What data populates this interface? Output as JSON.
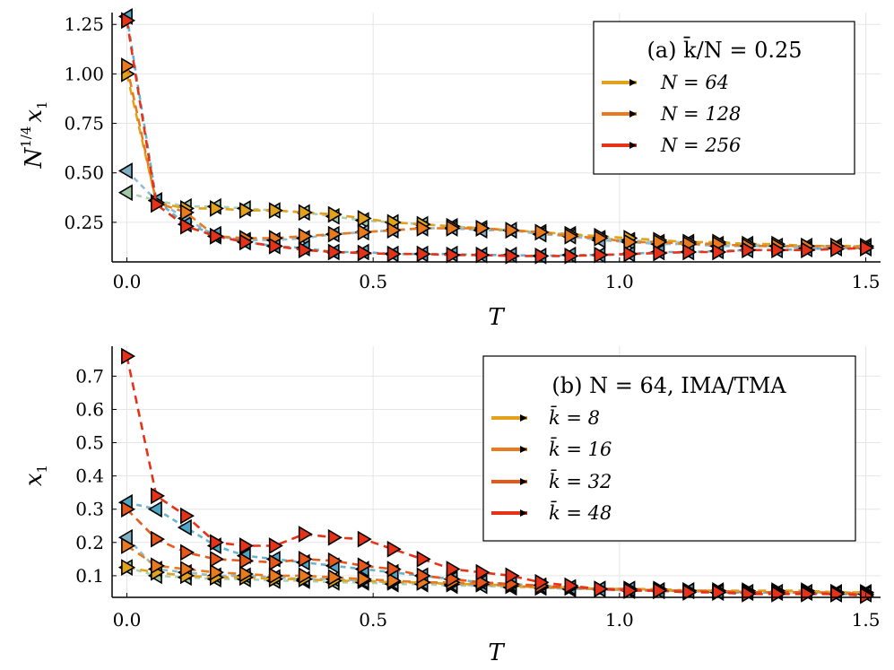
{
  "chart_data": [
    {
      "type": "line",
      "panel": "a",
      "legend_title": "(a) k̄/N = 0.25",
      "xlabel": "T",
      "ylabel": "N^{1/4} x_1",
      "ylabel_main": "N",
      "ylabel_exp": "1/4",
      "ylabel_var": "x",
      "ylabel_sub": "1",
      "xlim": [
        -0.03,
        1.53
      ],
      "ylim": [
        0.05,
        1.31
      ],
      "xticks": [
        0.0,
        0.5,
        1.0,
        1.5
      ],
      "xtick_labels": [
        "0.0",
        "0.5",
        "1.0",
        "1.5"
      ],
      "yticks": [
        0.25,
        0.5,
        0.75,
        1.0,
        1.25
      ],
      "ytick_labels": [
        "0.25",
        "0.50",
        "0.75",
        "1.00",
        "1.25"
      ],
      "legend_position": "top-right",
      "series": [
        {
          "name": "N = 64",
          "color": "#e2a21b",
          "x": [
            0.0,
            0.06,
            0.12,
            0.18,
            0.24,
            0.3,
            0.36,
            0.42,
            0.48,
            0.54,
            0.6,
            0.66,
            0.72,
            0.78,
            0.84,
            0.9,
            0.96,
            1.02,
            1.08,
            1.14,
            1.2,
            1.26,
            1.32,
            1.38,
            1.44,
            1.5
          ],
          "values": [
            1.0,
            0.35,
            0.32,
            0.32,
            0.31,
            0.31,
            0.3,
            0.29,
            0.27,
            0.25,
            0.24,
            0.23,
            0.22,
            0.21,
            0.2,
            0.19,
            0.18,
            0.17,
            0.16,
            0.15,
            0.15,
            0.14,
            0.14,
            0.13,
            0.13,
            0.13
          ]
        },
        {
          "name": "N = 128",
          "color": "#ea7a1e",
          "x": [
            0.0,
            0.06,
            0.12,
            0.18,
            0.24,
            0.3,
            0.36,
            0.42,
            0.48,
            0.54,
            0.6,
            0.66,
            0.72,
            0.78,
            0.84,
            0.9,
            0.96,
            1.02,
            1.08,
            1.14,
            1.2,
            1.26,
            1.32,
            1.38,
            1.44,
            1.5
          ],
          "values": [
            1.04,
            0.35,
            0.3,
            0.18,
            0.17,
            0.17,
            0.18,
            0.19,
            0.2,
            0.21,
            0.22,
            0.22,
            0.22,
            0.21,
            0.2,
            0.18,
            0.17,
            0.15,
            0.15,
            0.14,
            0.14,
            0.13,
            0.13,
            0.13,
            0.13,
            0.12
          ]
        },
        {
          "name": "N = 256",
          "color": "#e53218",
          "x": [
            0.0,
            0.06,
            0.12,
            0.18,
            0.24,
            0.3,
            0.36,
            0.42,
            0.48,
            0.54,
            0.6,
            0.66,
            0.72,
            0.78,
            0.84,
            0.9,
            0.96,
            1.02,
            1.08,
            1.14,
            1.2,
            1.26,
            1.32,
            1.38,
            1.44,
            1.5
          ],
          "values": [
            1.27,
            0.34,
            0.23,
            0.18,
            0.15,
            0.13,
            0.11,
            0.1,
            0.095,
            0.09,
            0.09,
            0.085,
            0.085,
            0.08,
            0.08,
            0.08,
            0.085,
            0.09,
            0.095,
            0.1,
            0.1,
            0.11,
            0.11,
            0.11,
            0.115,
            0.12
          ]
        },
        {
          "name": "",
          "color": "#9ec8a6",
          "x": [
            0.0,
            0.06,
            0.12,
            0.18,
            0.24,
            0.3,
            0.36,
            0.42,
            0.48,
            0.54,
            0.6,
            0.66,
            0.72,
            0.78,
            0.84,
            0.9,
            0.96,
            1.02,
            1.08,
            1.14,
            1.2,
            1.26,
            1.32,
            1.38,
            1.44,
            1.5
          ],
          "values": [
            0.4,
            0.36,
            0.33,
            0.33,
            0.32,
            0.31,
            0.3,
            0.28,
            0.26,
            0.25,
            0.24,
            0.23,
            0.22,
            0.21,
            0.2,
            0.19,
            0.17,
            0.16,
            0.15,
            0.15,
            0.14,
            0.14,
            0.13,
            0.13,
            0.13,
            0.13
          ]
        },
        {
          "name": "",
          "color": "#7fb0c6",
          "x": [
            0.0,
            0.06,
            0.12,
            0.18,
            0.24,
            0.3,
            0.36,
            0.42,
            0.48,
            0.54,
            0.6,
            0.66,
            0.72,
            0.78,
            0.84,
            0.9,
            0.96,
            1.02,
            1.08,
            1.14,
            1.2,
            1.26,
            1.32,
            1.38,
            1.44,
            1.5
          ],
          "values": [
            0.51,
            0.36,
            0.27,
            0.18,
            0.16,
            0.16,
            0.17,
            0.19,
            0.2,
            0.21,
            0.22,
            0.22,
            0.21,
            0.21,
            0.19,
            0.18,
            0.16,
            0.15,
            0.14,
            0.14,
            0.13,
            0.13,
            0.13,
            0.12,
            0.12,
            0.12
          ]
        },
        {
          "name": "",
          "color": "#4da6c4",
          "x": [
            0.0,
            0.06,
            0.12,
            0.18,
            0.24,
            0.3,
            0.36,
            0.42,
            0.48,
            0.54,
            0.6,
            0.66,
            0.72,
            0.78,
            0.84,
            0.9,
            0.96,
            1.02,
            1.08,
            1.14,
            1.2,
            1.26,
            1.32,
            1.38,
            1.44,
            1.5
          ],
          "values": [
            1.29,
            0.36,
            0.24,
            0.19,
            0.15,
            0.13,
            0.12,
            0.1,
            0.1,
            0.09,
            0.09,
            0.09,
            0.085,
            0.085,
            0.08,
            0.085,
            0.085,
            0.09,
            0.1,
            0.1,
            0.105,
            0.11,
            0.11,
            0.115,
            0.12,
            0.12
          ]
        }
      ]
    },
    {
      "type": "line",
      "panel": "b",
      "legend_title": "(b) N = 64, IMA/TMA",
      "xlabel": "T",
      "ylabel": "x_1",
      "ylabel_var": "x",
      "ylabel_sub": "1",
      "xlim": [
        -0.03,
        1.53
      ],
      "ylim": [
        0.035,
        0.79
      ],
      "xticks": [
        0.0,
        0.5,
        1.0,
        1.5
      ],
      "xtick_labels": [
        "0.0",
        "0.5",
        "1.0",
        "1.5"
      ],
      "yticks": [
        0.1,
        0.2,
        0.3,
        0.4,
        0.5,
        0.6,
        0.7
      ],
      "ytick_labels": [
        "0.1",
        "0.2",
        "0.3",
        "0.4",
        "0.5",
        "0.6",
        "0.7"
      ],
      "legend_position": "top-right",
      "series": [
        {
          "name": "k̄ = 8",
          "color": "#e2a21b",
          "x": [
            0.0,
            0.06,
            0.12,
            0.18,
            0.24,
            0.3,
            0.36,
            0.42,
            0.48,
            0.54,
            0.6,
            0.66,
            0.72,
            0.78,
            0.84,
            0.9,
            0.96,
            1.02,
            1.08,
            1.14,
            1.2,
            1.26,
            1.32,
            1.38,
            1.44,
            1.5
          ],
          "values": [
            0.125,
            0.11,
            0.1,
            0.095,
            0.095,
            0.09,
            0.09,
            0.085,
            0.085,
            0.08,
            0.08,
            0.075,
            0.075,
            0.07,
            0.065,
            0.065,
            0.06,
            0.06,
            0.06,
            0.055,
            0.055,
            0.055,
            0.055,
            0.055,
            0.05,
            0.05
          ]
        },
        {
          "name": "k̄ = 16",
          "color": "#ea7a1e",
          "x": [
            0.0,
            0.06,
            0.12,
            0.18,
            0.24,
            0.3,
            0.36,
            0.42,
            0.48,
            0.54,
            0.6,
            0.66,
            0.72,
            0.78,
            0.84,
            0.9,
            0.96,
            1.02,
            1.08,
            1.14,
            1.2,
            1.26,
            1.32,
            1.38,
            1.44,
            1.5
          ],
          "values": [
            0.19,
            0.13,
            0.12,
            0.11,
            0.105,
            0.1,
            0.1,
            0.095,
            0.09,
            0.085,
            0.08,
            0.08,
            0.075,
            0.07,
            0.065,
            0.065,
            0.06,
            0.06,
            0.055,
            0.055,
            0.055,
            0.05,
            0.05,
            0.05,
            0.05,
            0.045
          ]
        },
        {
          "name": "k̄ = 32",
          "color": "#e8571a",
          "x": [
            0.0,
            0.06,
            0.12,
            0.18,
            0.24,
            0.3,
            0.36,
            0.42,
            0.48,
            0.54,
            0.6,
            0.66,
            0.72,
            0.78,
            0.84,
            0.9,
            0.96,
            1.02,
            1.08,
            1.14,
            1.2,
            1.26,
            1.32,
            1.38,
            1.44,
            1.5
          ],
          "values": [
            0.3,
            0.21,
            0.17,
            0.15,
            0.145,
            0.14,
            0.15,
            0.145,
            0.13,
            0.12,
            0.1,
            0.09,
            0.08,
            0.075,
            0.07,
            0.065,
            0.06,
            0.06,
            0.055,
            0.055,
            0.05,
            0.05,
            0.05,
            0.05,
            0.045,
            0.045
          ]
        },
        {
          "name": "k̄ = 48",
          "color": "#e53218",
          "x": [
            0.0,
            0.06,
            0.12,
            0.18,
            0.24,
            0.3,
            0.36,
            0.42,
            0.48,
            0.54,
            0.6,
            0.66,
            0.72,
            0.78,
            0.84,
            0.9,
            0.96,
            1.02,
            1.08,
            1.14,
            1.2,
            1.26,
            1.32,
            1.38,
            1.44,
            1.5
          ],
          "values": [
            0.76,
            0.34,
            0.28,
            0.2,
            0.19,
            0.19,
            0.225,
            0.215,
            0.21,
            0.18,
            0.15,
            0.12,
            0.11,
            0.1,
            0.08,
            0.07,
            0.06,
            0.055,
            0.055,
            0.05,
            0.05,
            0.045,
            0.045,
            0.045,
            0.045,
            0.04
          ]
        },
        {
          "name": "",
          "color": "#9ec8a6",
          "x": [
            0.0,
            0.06,
            0.12,
            0.18,
            0.24,
            0.3,
            0.36,
            0.42,
            0.48,
            0.54,
            0.6,
            0.66,
            0.72,
            0.78,
            0.84,
            0.9,
            0.96,
            1.02,
            1.08,
            1.14,
            1.2,
            1.26,
            1.32,
            1.38,
            1.44,
            1.5
          ],
          "values": [
            0.125,
            0.1,
            0.095,
            0.09,
            0.09,
            0.085,
            0.085,
            0.08,
            0.08,
            0.075,
            0.075,
            0.07,
            0.07,
            0.065,
            0.065,
            0.06,
            0.06,
            0.06,
            0.055,
            0.055,
            0.055,
            0.05,
            0.05,
            0.05,
            0.05,
            0.05
          ]
        },
        {
          "name": "",
          "color": "#7fb0c6",
          "x": [
            0.0,
            0.06,
            0.12,
            0.18,
            0.24,
            0.3,
            0.36,
            0.42,
            0.48,
            0.54,
            0.6,
            0.66,
            0.72,
            0.78,
            0.84,
            0.9,
            0.96,
            1.02,
            1.08,
            1.14,
            1.2,
            1.26,
            1.32,
            1.38,
            1.44,
            1.5
          ],
          "values": [
            0.215,
            0.12,
            0.11,
            0.1,
            0.1,
            0.095,
            0.09,
            0.09,
            0.085,
            0.08,
            0.08,
            0.075,
            0.07,
            0.07,
            0.065,
            0.06,
            0.06,
            0.055,
            0.055,
            0.055,
            0.05,
            0.05,
            0.05,
            0.05,
            0.045,
            0.045
          ]
        },
        {
          "name": "",
          "color": "#4da6c4",
          "x": [
            0.0,
            0.06,
            0.12,
            0.18,
            0.24,
            0.3,
            0.36,
            0.42,
            0.48,
            0.54,
            0.6,
            0.66,
            0.72,
            0.78,
            0.84,
            0.9,
            0.96,
            1.02,
            1.08,
            1.14,
            1.2,
            1.26,
            1.32,
            1.38,
            1.44,
            1.5
          ],
          "values": [
            0.32,
            0.3,
            0.245,
            0.19,
            0.16,
            0.15,
            0.14,
            0.13,
            0.12,
            0.11,
            0.1,
            0.09,
            0.08,
            0.075,
            0.07,
            0.065,
            0.06,
            0.06,
            0.055,
            0.055,
            0.05,
            0.05,
            0.05,
            0.05,
            0.045,
            0.045
          ]
        }
      ]
    }
  ]
}
